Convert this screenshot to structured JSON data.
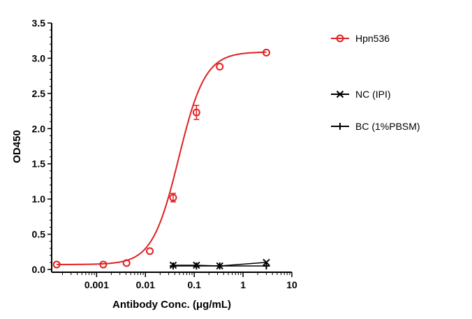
{
  "chart_data": {
    "type": "scatter",
    "xlabel": "Antibody Conc. (μg/mL)",
    "ylabel": "OD450",
    "x_scale": "log",
    "xlim": [
      0.00012,
      10
    ],
    "ylim": [
      0,
      3.5
    ],
    "x_ticks": [
      {
        "value": 0.001,
        "label": "0.001"
      },
      {
        "value": 0.01,
        "label": "0.01"
      },
      {
        "value": 0.1,
        "label": "0.1"
      },
      {
        "value": 1,
        "label": "1"
      },
      {
        "value": 10,
        "label": "10"
      }
    ],
    "y_ticks": [
      {
        "value": 0.0,
        "label": "0.0"
      },
      {
        "value": 0.5,
        "label": "0.5"
      },
      {
        "value": 1.0,
        "label": "1.0"
      },
      {
        "value": 1.5,
        "label": "1.5"
      },
      {
        "value": 2.0,
        "label": "2.0"
      },
      {
        "value": 2.5,
        "label": "2.5"
      },
      {
        "value": 3.0,
        "label": "3.0"
      },
      {
        "value": 3.5,
        "label": "3.5"
      }
    ],
    "legend_position": "right",
    "series": [
      {
        "name": "Hpn536",
        "color": "#e02020",
        "marker": "circle",
        "fit": "4pl",
        "points": [
          {
            "x": 0.000152,
            "y": 0.07
          },
          {
            "x": 0.00137,
            "y": 0.07
          },
          {
            "x": 0.0041,
            "y": 0.09
          },
          {
            "x": 0.0123,
            "y": 0.26
          },
          {
            "x": 0.037,
            "y": 1.02,
            "err": 0.06
          },
          {
            "x": 0.111,
            "y": 2.23,
            "err": 0.1
          },
          {
            "x": 0.333,
            "y": 2.88
          },
          {
            "x": 3.0,
            "y": 3.08
          }
        ]
      },
      {
        "name": "NC (IPI)",
        "color": "#000000",
        "marker": "x",
        "points": [
          {
            "x": 0.037,
            "y": 0.06
          },
          {
            "x": 0.111,
            "y": 0.06
          },
          {
            "x": 0.333,
            "y": 0.05
          },
          {
            "x": 3.0,
            "y": 0.1
          }
        ]
      },
      {
        "name": "BC (1%PBSM)",
        "color": "#000000",
        "marker": "plus",
        "points": [
          {
            "x": 0.037,
            "y": 0.05
          },
          {
            "x": 0.111,
            "y": 0.05
          },
          {
            "x": 0.333,
            "y": 0.05
          },
          {
            "x": 3.0,
            "y": 0.05
          }
        ]
      }
    ]
  }
}
